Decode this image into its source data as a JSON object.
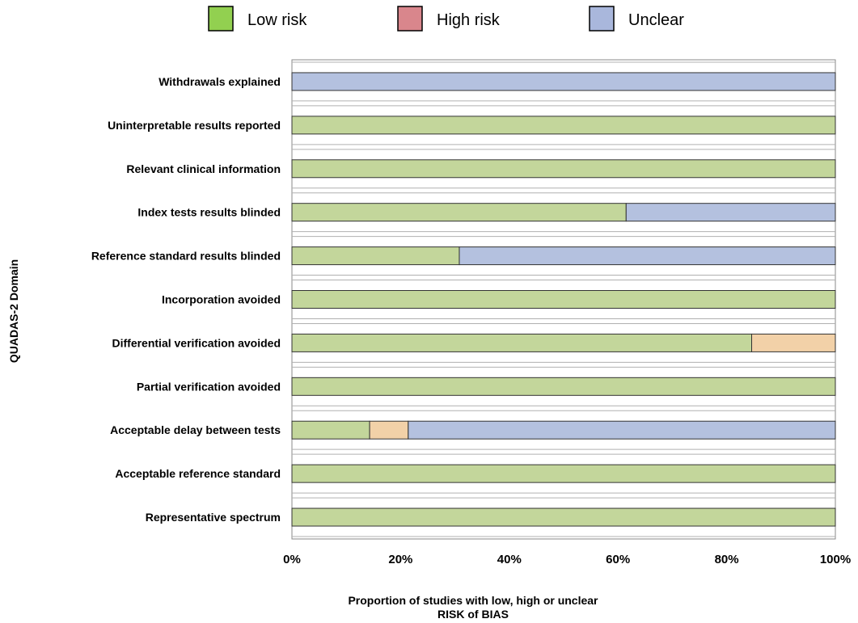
{
  "chart_data": {
    "type": "bar",
    "orientation": "horizontal",
    "stacked": true,
    "title": "",
    "xlabel": [
      "Proportion of studies with low, high or unclear",
      "RISK of BIAS"
    ],
    "ylabel": "QUADAS-2 Domain",
    "xlim": [
      0,
      100
    ],
    "x_ticks": [
      "0%",
      "20%",
      "40%",
      "60%",
      "80%",
      "100%"
    ],
    "grid": true,
    "legend_position": "top",
    "legend": [
      {
        "name": "Low risk",
        "color": "#92d050"
      },
      {
        "name": "High risk",
        "color": "#d9868c"
      },
      {
        "name": "Unclear",
        "color": "#a9b7dc"
      }
    ],
    "categories": [
      "Withdrawals explained",
      "Uninterpretable results reported",
      "Relevant clinical information",
      "Index tests results blinded",
      "Reference standard results blinded",
      "Incorporation avoided",
      "Differential verification avoided",
      "Partial verification avoided",
      "Acceptable delay between tests",
      "Acceptable reference standard",
      "Representative spectrum"
    ],
    "series": [
      {
        "name": "Low risk",
        "color": "#c3d69b",
        "values": [
          0,
          100,
          100,
          61.5,
          30.8,
          100,
          84.6,
          100,
          14.3,
          100,
          100
        ]
      },
      {
        "name": "High risk",
        "color": "#f2d1a8",
        "values": [
          0,
          0,
          0,
          0,
          0,
          0,
          15.4,
          0,
          7.1,
          0,
          0
        ]
      },
      {
        "name": "Unclear",
        "color": "#b4c1df",
        "values": [
          100,
          0,
          0,
          38.5,
          69.2,
          0,
          0,
          0,
          78.6,
          0,
          0
        ]
      }
    ]
  }
}
